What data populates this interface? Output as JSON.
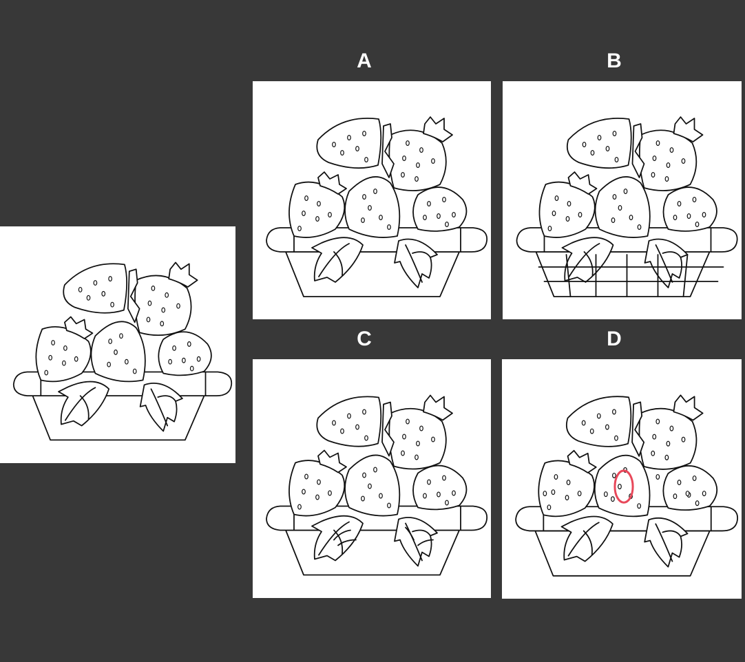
{
  "puzzle": {
    "options": [
      {
        "id": "A",
        "label": "A",
        "variant": "a"
      },
      {
        "id": "B",
        "label": "B",
        "variant": "b"
      },
      {
        "id": "C",
        "label": "C",
        "variant": "c"
      },
      {
        "id": "D",
        "label": "D",
        "variant": "d"
      }
    ],
    "highlight_color": "#e8485a",
    "background_color": "#383838"
  }
}
